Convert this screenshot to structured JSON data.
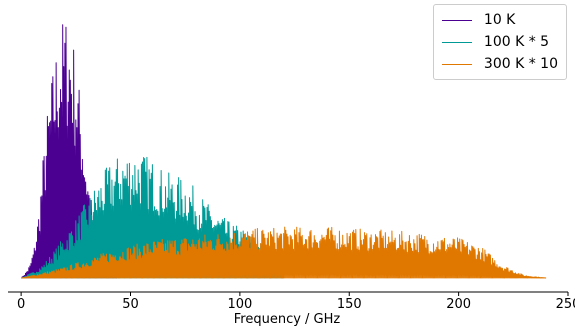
{
  "chart_data": {
    "type": "line",
    "title": "",
    "xlabel": "Frequency / GHz",
    "ylabel": "",
    "xlim": [
      -6,
      250
    ],
    "ylim": [
      0,
      1.0
    ],
    "x_ticks": [
      0,
      50,
      100,
      150,
      200,
      250
    ],
    "grid": false,
    "legend_position": "top-right",
    "series": [
      {
        "name": "10 K",
        "color": "#4b0092",
        "style": "dense-lines",
        "x": [
          0,
          2,
          4,
          6,
          8,
          10,
          12,
          14,
          16,
          18,
          20,
          22,
          24,
          26,
          28,
          30,
          32,
          34,
          36,
          38,
          40,
          42,
          44
        ],
        "y": [
          0.0,
          0.02,
          0.05,
          0.12,
          0.25,
          0.45,
          0.62,
          0.75,
          0.86,
          0.94,
          0.99,
          0.96,
          0.88,
          0.76,
          0.6,
          0.44,
          0.3,
          0.19,
          0.11,
          0.06,
          0.03,
          0.01,
          0.0
        ]
      },
      {
        "name": "100 K * 5",
        "color": "#009a96",
        "style": "dense-lines",
        "x": [
          0,
          5,
          10,
          15,
          20,
          25,
          30,
          35,
          40,
          45,
          50,
          55,
          60,
          65,
          70,
          75,
          80,
          85,
          90,
          95,
          100,
          105,
          110,
          115,
          120
        ],
        "y": [
          0.0,
          0.02,
          0.05,
          0.1,
          0.16,
          0.22,
          0.29,
          0.36,
          0.42,
          0.46,
          0.48,
          0.47,
          0.44,
          0.4,
          0.38,
          0.37,
          0.33,
          0.28,
          0.24,
          0.21,
          0.19,
          0.16,
          0.13,
          0.1,
          0.07
        ]
      },
      {
        "name": "300 K * 10",
        "color": "#e07800",
        "style": "dense-lines",
        "x": [
          0,
          10,
          20,
          30,
          40,
          50,
          60,
          70,
          80,
          90,
          100,
          110,
          120,
          130,
          140,
          150,
          160,
          170,
          180,
          190,
          200,
          210,
          220,
          230,
          240
        ],
        "y": [
          0.0,
          0.02,
          0.04,
          0.07,
          0.1,
          0.12,
          0.14,
          0.15,
          0.16,
          0.17,
          0.18,
          0.185,
          0.19,
          0.19,
          0.19,
          0.185,
          0.18,
          0.175,
          0.17,
          0.16,
          0.15,
          0.12,
          0.05,
          0.01,
          0.0
        ]
      }
    ]
  }
}
